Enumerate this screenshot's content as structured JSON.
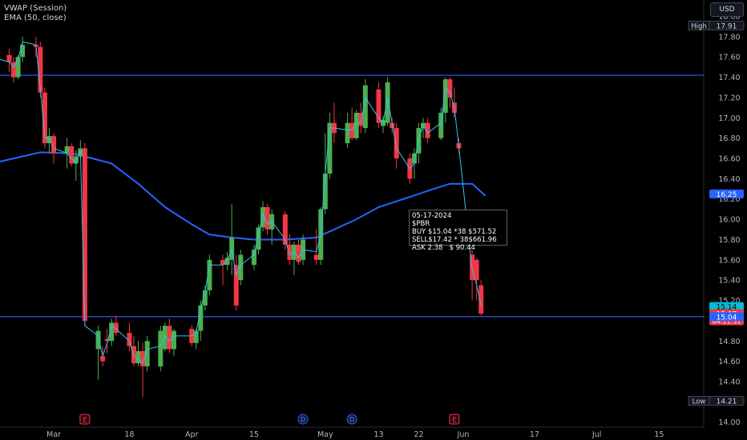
{
  "indicators": {
    "vwap": "VWAP (Session)",
    "ema": "EMA (50, close)"
  },
  "currency": "USD",
  "tooltip": {
    "date": "05-17-2024",
    "ticker": "$PBR",
    "buy": "BUY $15.04 *38 $571.52",
    "sell": "SELL$17.42 * 38$661.96",
    "ask": "ASK 2.38   $ 90.44"
  },
  "colors": {
    "up": "#26a69a",
    "up_body": "#4caf50",
    "down": "#f23645",
    "ema": "#2962ff",
    "vwap": "#2ec4f0",
    "hline": "#2962ff"
  },
  "chart_data": {
    "type": "candlestick",
    "ylim": [
      13.97,
      18.15
    ],
    "y_ticks": [
      "18.00",
      "17.80",
      "17.60",
      "17.40",
      "17.20",
      "17.00",
      "16.80",
      "16.60",
      "16.40",
      "16.20",
      "16.00",
      "15.80",
      "15.60",
      "15.40",
      "15.20",
      "15.00",
      "14.80",
      "14.60",
      "14.40",
      "14.20",
      "14.00"
    ],
    "x_ticks": [
      {
        "label": "Mar",
        "date": "2024-03-01"
      },
      {
        "label": "18",
        "date": "2024-03-18"
      },
      {
        "label": "Apr",
        "date": "2024-04-01"
      },
      {
        "label": "15",
        "date": "2024-04-15"
      },
      {
        "label": "May",
        "date": "2024-05-01"
      },
      {
        "label": "13",
        "date": "2024-05-13"
      },
      {
        "label": "22",
        "date": "2024-05-22"
      },
      {
        "label": "Jun",
        "date": "2024-06-01"
      },
      {
        "label": "17",
        "date": "2024-06-17"
      },
      {
        "label": "Jul",
        "date": "2024-07-01"
      },
      {
        "label": "15",
        "date": "2024-07-15"
      }
    ],
    "candles": [
      {
        "date": "2024-02-14",
        "o": 17.72,
        "h": 17.82,
        "l": 17.55,
        "c": 17.78
      },
      {
        "date": "2024-02-15",
        "o": 17.78,
        "h": 17.8,
        "l": 17.55,
        "c": 17.65
      },
      {
        "date": "2024-02-16",
        "o": 17.65,
        "h": 17.7,
        "l": 17.45,
        "c": 17.62
      },
      {
        "date": "2024-02-20",
        "o": 17.62,
        "h": 17.68,
        "l": 17.45,
        "c": 17.55
      },
      {
        "date": "2024-02-21",
        "o": 17.55,
        "h": 17.6,
        "l": 17.35,
        "c": 17.4
      },
      {
        "date": "2024-02-22",
        "o": 17.4,
        "h": 17.62,
        "l": 17.38,
        "c": 17.6
      },
      {
        "date": "2024-02-23",
        "o": 17.6,
        "h": 17.8,
        "l": 17.55,
        "c": 17.72
      },
      {
        "date": "2024-02-26",
        "o": 17.72,
        "h": 17.8,
        "l": 17.6,
        "c": 17.7
      },
      {
        "date": "2024-02-27",
        "o": 17.7,
        "h": 17.75,
        "l": 17.2,
        "c": 17.25
      },
      {
        "date": "2024-02-28",
        "o": 17.25,
        "h": 17.3,
        "l": 16.7,
        "c": 16.75
      },
      {
        "date": "2024-02-29",
        "o": 16.75,
        "h": 16.9,
        "l": 16.65,
        "c": 16.82
      },
      {
        "date": "2024-03-01",
        "o": 16.82,
        "h": 16.85,
        "l": 16.55,
        "c": 16.65
      },
      {
        "date": "2024-03-04",
        "o": 16.65,
        "h": 16.8,
        "l": 16.5,
        "c": 16.72
      },
      {
        "date": "2024-03-05",
        "o": 16.72,
        "h": 16.75,
        "l": 16.52,
        "c": 16.55
      },
      {
        "date": "2024-03-06",
        "o": 16.55,
        "h": 16.68,
        "l": 16.38,
        "c": 16.62
      },
      {
        "date": "2024-03-07",
        "o": 16.62,
        "h": 16.78,
        "l": 16.6,
        "c": 16.7
      },
      {
        "date": "2024-03-08",
        "o": 16.7,
        "h": 16.75,
        "l": 14.95,
        "c": 15.0
      },
      {
        "date": "2024-03-11",
        "o": 14.72,
        "h": 14.95,
        "l": 14.42,
        "c": 14.9
      },
      {
        "date": "2024-03-12",
        "o": 14.65,
        "h": 14.75,
        "l": 14.55,
        "c": 14.6
      },
      {
        "date": "2024-03-13",
        "o": 14.82,
        "h": 14.92,
        "l": 14.68,
        "c": 14.8
      },
      {
        "date": "2024-03-14",
        "o": 14.8,
        "h": 15.02,
        "l": 14.75,
        "c": 14.98
      },
      {
        "date": "2024-03-15",
        "o": 14.98,
        "h": 15.05,
        "l": 14.85,
        "c": 14.88
      },
      {
        "date": "2024-03-18",
        "o": 14.88,
        "h": 14.98,
        "l": 14.7,
        "c": 14.75
      },
      {
        "date": "2024-03-19",
        "o": 14.75,
        "h": 14.85,
        "l": 14.55,
        "c": 14.58
      },
      {
        "date": "2024-03-20",
        "o": 14.58,
        "h": 14.8,
        "l": 14.55,
        "c": 14.7
      },
      {
        "date": "2024-03-21",
        "o": 14.7,
        "h": 14.78,
        "l": 14.25,
        "c": 14.55
      },
      {
        "date": "2024-03-22",
        "o": 14.55,
        "h": 14.85,
        "l": 14.5,
        "c": 14.8
      },
      {
        "date": "2024-03-25",
        "o": 14.55,
        "h": 14.95,
        "l": 14.5,
        "c": 14.9
      },
      {
        "date": "2024-03-26",
        "o": 14.72,
        "h": 14.98,
        "l": 14.7,
        "c": 14.95
      },
      {
        "date": "2024-03-27",
        "o": 14.95,
        "h": 15.02,
        "l": 14.68,
        "c": 14.72
      },
      {
        "date": "2024-03-28",
        "o": 14.72,
        "h": 14.92,
        "l": 14.65,
        "c": 14.9
      },
      {
        "date": "2024-04-01",
        "o": 14.92,
        "h": 14.96,
        "l": 14.75,
        "c": 14.78
      },
      {
        "date": "2024-04-02",
        "o": 14.78,
        "h": 14.92,
        "l": 14.72,
        "c": 14.9
      },
      {
        "date": "2024-04-03",
        "o": 14.9,
        "h": 15.2,
        "l": 14.8,
        "c": 15.15
      },
      {
        "date": "2024-04-04",
        "o": 15.15,
        "h": 15.35,
        "l": 15.1,
        "c": 15.3
      },
      {
        "date": "2024-04-05",
        "o": 15.3,
        "h": 15.65,
        "l": 15.25,
        "c": 15.6
      },
      {
        "date": "2024-04-08",
        "o": 15.6,
        "h": 15.65,
        "l": 15.35,
        "c": 15.55
      },
      {
        "date": "2024-04-09",
        "o": 15.55,
        "h": 15.68,
        "l": 15.5,
        "c": 15.62
      },
      {
        "date": "2024-04-10",
        "o": 15.6,
        "h": 16.15,
        "l": 15.45,
        "c": 15.82
      },
      {
        "date": "2024-04-11",
        "o": 15.55,
        "h": 15.65,
        "l": 15.1,
        "c": 15.15
      },
      {
        "date": "2024-04-12",
        "o": 15.4,
        "h": 15.7,
        "l": 15.35,
        "c": 15.65
      },
      {
        "date": "2024-04-15",
        "o": 15.55,
        "h": 15.75,
        "l": 15.5,
        "c": 15.7
      },
      {
        "date": "2024-04-16",
        "o": 15.7,
        "h": 15.95,
        "l": 15.65,
        "c": 15.92
      },
      {
        "date": "2024-04-17",
        "o": 15.92,
        "h": 16.18,
        "l": 15.88,
        "c": 16.12
      },
      {
        "date": "2024-04-18",
        "o": 16.12,
        "h": 16.15,
        "l": 15.85,
        "c": 15.9
      },
      {
        "date": "2024-04-19",
        "o": 15.9,
        "h": 16.1,
        "l": 15.75,
        "c": 16.05
      },
      {
        "date": "2024-04-22",
        "o": 16.05,
        "h": 16.08,
        "l": 15.7,
        "c": 15.75
      },
      {
        "date": "2024-04-23",
        "o": 15.75,
        "h": 15.85,
        "l": 15.55,
        "c": 15.6
      },
      {
        "date": "2024-04-24",
        "o": 15.6,
        "h": 15.78,
        "l": 15.45,
        "c": 15.75
      },
      {
        "date": "2024-04-25",
        "o": 15.75,
        "h": 15.8,
        "l": 15.55,
        "c": 15.58
      },
      {
        "date": "2024-04-26",
        "o": 15.6,
        "h": 15.85,
        "l": 15.55,
        "c": 15.8
      },
      {
        "date": "2024-04-29",
        "o": 15.65,
        "h": 15.9,
        "l": 15.55,
        "c": 15.6
      },
      {
        "date": "2024-04-30",
        "o": 15.6,
        "h": 16.12,
        "l": 15.55,
        "c": 16.1
      },
      {
        "date": "2024-05-01",
        "o": 16.1,
        "h": 16.85,
        "l": 16.05,
        "c": 16.45
      },
      {
        "date": "2024-05-02",
        "o": 16.45,
        "h": 17.05,
        "l": 16.4,
        "c": 16.95
      },
      {
        "date": "2024-05-03",
        "o": 16.95,
        "h": 17.15,
        "l": 16.75,
        "c": 16.85
      },
      {
        "date": "2024-05-06",
        "o": 16.75,
        "h": 17.05,
        "l": 16.7,
        "c": 16.95
      },
      {
        "date": "2024-05-07",
        "o": 16.95,
        "h": 17.1,
        "l": 16.78,
        "c": 16.8
      },
      {
        "date": "2024-05-08",
        "o": 16.8,
        "h": 17.08,
        "l": 16.78,
        "c": 17.05
      },
      {
        "date": "2024-05-09",
        "o": 17.05,
        "h": 17.15,
        "l": 16.85,
        "c": 16.92
      },
      {
        "date": "2024-05-10",
        "o": 16.9,
        "h": 17.38,
        "l": 16.85,
        "c": 17.32
      },
      {
        "date": "2024-05-13",
        "o": 17.28,
        "h": 17.35,
        "l": 16.9,
        "c": 16.95
      },
      {
        "date": "2024-05-14",
        "o": 16.92,
        "h": 17.02,
        "l": 16.85,
        "c": 16.98
      },
      {
        "date": "2024-05-15",
        "o": 16.95,
        "h": 17.4,
        "l": 16.92,
        "c": 17.35
      },
      {
        "date": "2024-05-16",
        "o": 16.95,
        "h": 17.0,
        "l": 16.85,
        "c": 16.9
      },
      {
        "date": "2024-05-17",
        "o": 16.9,
        "h": 16.95,
        "l": 16.5,
        "c": 16.6
      },
      {
        "date": "2024-05-20",
        "o": 16.6,
        "h": 16.65,
        "l": 16.35,
        "c": 16.4
      },
      {
        "date": "2024-05-21",
        "o": 16.55,
        "h": 16.7,
        "l": 16.4,
        "c": 16.65
      },
      {
        "date": "2024-05-22",
        "o": 16.65,
        "h": 16.95,
        "l": 16.55,
        "c": 16.9
      },
      {
        "date": "2024-05-23",
        "o": 16.9,
        "h": 17.0,
        "l": 16.8,
        "c": 16.95
      },
      {
        "date": "2024-05-24",
        "o": 16.95,
        "h": 17.0,
        "l": 16.75,
        "c": 16.8
      },
      {
        "date": "2024-05-27",
        "o": 16.8,
        "h": 17.1,
        "l": 16.78,
        "c": 17.05
      },
      {
        "date": "2024-05-28",
        "o": 17.05,
        "h": 17.4,
        "l": 16.95,
        "c": 17.38
      },
      {
        "date": "2024-05-29",
        "o": 17.38,
        "h": 17.4,
        "l": 17.1,
        "c": 17.2
      },
      {
        "date": "2024-05-30",
        "o": 17.15,
        "h": 17.3,
        "l": 17.0,
        "c": 17.05
      },
      {
        "date": "2024-05-31",
        "o": 16.75,
        "h": 16.8,
        "l": 16.65,
        "c": 16.7
      },
      {
        "date": "2024-06-03",
        "o": 15.65,
        "h": 15.7,
        "l": 15.2,
        "c": 15.4
      },
      {
        "date": "2024-06-04",
        "o": 15.6,
        "h": 15.62,
        "l": 15.2,
        "c": 15.4
      },
      {
        "date": "2024-06-05",
        "o": 15.35,
        "h": 15.4,
        "l": 15.05,
        "c": 15.07
      }
    ],
    "vwap": [
      17.75,
      17.7,
      17.6,
      17.55,
      17.5,
      17.58,
      17.75,
      17.72,
      17.3,
      16.8,
      16.8,
      16.7,
      16.65,
      16.6,
      16.55,
      16.68,
      14.95,
      14.85,
      14.65,
      14.78,
      14.95,
      14.92,
      14.8,
      14.65,
      14.62,
      14.58,
      14.72,
      14.75,
      14.85,
      14.8,
      14.85,
      14.85,
      14.88,
      15.12,
      15.28,
      15.55,
      15.55,
      15.6,
      15.7,
      15.45,
      15.55,
      15.65,
      15.85,
      16.05,
      15.95,
      15.98,
      15.8,
      15.65,
      15.68,
      15.62,
      15.7,
      15.68,
      15.85,
      16.45,
      16.9,
      16.9,
      16.88,
      16.88,
      16.95,
      16.95,
      17.2,
      17.0,
      16.95,
      17.2,
      16.95,
      16.7,
      16.5,
      16.55,
      16.8,
      16.92,
      16.85,
      16.95,
      17.3,
      17.25,
      17.1,
      16.72,
      15.5,
      15.35,
      15.15
    ],
    "ema": [
      {
        "date": "2024-02-09",
        "v": 16.45
      },
      {
        "date": "2024-02-16",
        "v": 16.55
      },
      {
        "date": "2024-02-23",
        "v": 16.62
      },
      {
        "date": "2024-02-27",
        "v": 16.66
      },
      {
        "date": "2024-03-05",
        "v": 16.65
      },
      {
        "date": "2024-03-08",
        "v": 16.62
      },
      {
        "date": "2024-03-14",
        "v": 16.55
      },
      {
        "date": "2024-03-20",
        "v": 16.35
      },
      {
        "date": "2024-03-26",
        "v": 16.12
      },
      {
        "date": "2024-04-01",
        "v": 15.95
      },
      {
        "date": "2024-04-05",
        "v": 15.85
      },
      {
        "date": "2024-04-10",
        "v": 15.82
      },
      {
        "date": "2024-04-15",
        "v": 15.8
      },
      {
        "date": "2024-04-22",
        "v": 15.8
      },
      {
        "date": "2024-04-29",
        "v": 15.82
      },
      {
        "date": "2024-05-03",
        "v": 15.9
      },
      {
        "date": "2024-05-08",
        "v": 16.0
      },
      {
        "date": "2024-05-13",
        "v": 16.12
      },
      {
        "date": "2024-05-20",
        "v": 16.22
      },
      {
        "date": "2024-05-24",
        "v": 16.28
      },
      {
        "date": "2024-05-29",
        "v": 16.35
      },
      {
        "date": "2024-06-03",
        "v": 16.35
      },
      {
        "date": "2024-06-06",
        "v": 16.23
      }
    ],
    "hlines": [
      {
        "value": 17.42,
        "label": "17.42"
      },
      {
        "value": 15.04,
        "label": "15.04"
      }
    ],
    "price_labels": [
      {
        "value": 17.91,
        "label": "17.91",
        "tag": "High",
        "kind": "outline"
      },
      {
        "value": 16.25,
        "label": "16.25",
        "kind": "blue"
      },
      {
        "value": 15.14,
        "label": "15.14",
        "kind": "cyan"
      },
      {
        "value": 15.07,
        "label": "15.07",
        "sub": "04:11:31",
        "kind": "red"
      },
      {
        "value": 15.04,
        "label": "15.04",
        "kind": "blue"
      },
      {
        "value": 14.21,
        "label": "14.21",
        "tag": "Low",
        "kind": "outline"
      }
    ],
    "events": [
      {
        "date": "2024-03-08",
        "label": "E",
        "kind": "earnings"
      },
      {
        "date": "2024-04-26",
        "label": "D",
        "kind": "dividend"
      },
      {
        "date": "2024-05-07",
        "label": "D",
        "kind": "dividend"
      },
      {
        "date": "2024-05-30",
        "label": "E",
        "kind": "earnings"
      }
    ]
  }
}
